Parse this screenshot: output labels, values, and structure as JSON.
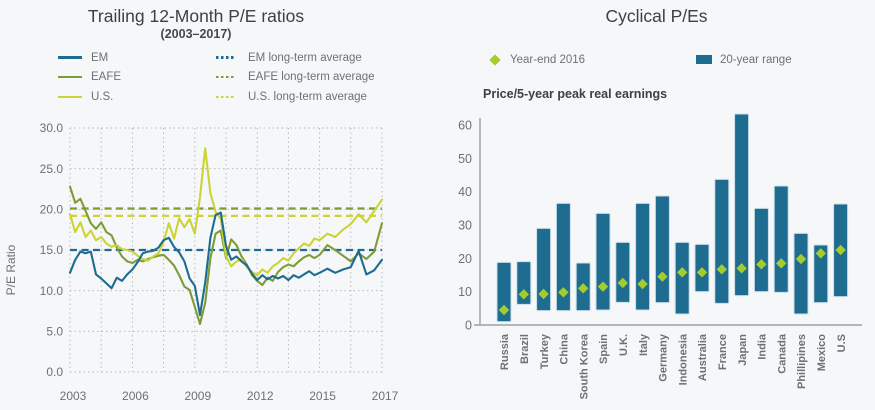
{
  "page": {
    "background": "#f6f7f9"
  },
  "chart_data": [
    {
      "id": "trailing-12-month-pe",
      "type": "line",
      "title": "Trailing 12-Month P/E ratios",
      "subtitle": "(2003–2017)",
      "ylabel": "P/E Ratio",
      "ylim": [
        0,
        30
      ],
      "yticks": [
        0,
        5,
        10,
        15,
        20,
        25,
        30
      ],
      "ytick_labels": [
        "0.0",
        "5.0",
        "10.0",
        "15.0",
        "20.0",
        "25.0",
        "30.0"
      ],
      "xtick_labels": [
        "2003",
        "2006",
        "2009",
        "2012",
        "2015",
        "2017"
      ],
      "grid": "dotted",
      "legend_position": "top",
      "x": {
        "start": 2003,
        "step": 0.25,
        "count": 57
      },
      "series": [
        {
          "name": "EM",
          "color": "#1e6c90",
          "style": "solid",
          "values": [
            12.2,
            13.8,
            14.8,
            14.6,
            14.8,
            12.0,
            11.5,
            10.9,
            10.3,
            11.6,
            11.2,
            12.0,
            12.6,
            13.5,
            14.6,
            14.8,
            14.9,
            15.3,
            16.2,
            16.5,
            15.4,
            14.7,
            13.6,
            11.5,
            10.6,
            7.0,
            11.0,
            16.5,
            19.3,
            19.6,
            15.5,
            13.8,
            14.2,
            13.6,
            13.1,
            12.1,
            11.3,
            11.9,
            11.4,
            11.8,
            11.5,
            11.8,
            11.3,
            11.9,
            11.6,
            12.0,
            12.4,
            11.9,
            12.2,
            12.7,
            12.2,
            12.6,
            12.9,
            14.9,
            12.0,
            12.5,
            13.8
          ]
        },
        {
          "name": "EAFE",
          "color": "#7d9b36",
          "style": "solid",
          "values": [
            22.8,
            20.8,
            21.3,
            19.8,
            18.3,
            17.6,
            18.4,
            17.2,
            16.8,
            15.3,
            14.2,
            13.6,
            13.4,
            13.8,
            13.6,
            13.9,
            14.1,
            14.3,
            14.4,
            13.8,
            13.1,
            11.9,
            10.5,
            10.1,
            8.0,
            5.9,
            8.5,
            14.0,
            17.0,
            17.4,
            14.0,
            16.3,
            15.6,
            14.2,
            13.2,
            11.9,
            11.2,
            10.7,
            11.6,
            11.2,
            12.3,
            12.9,
            13.2,
            13.0,
            13.6,
            14.1,
            14.4,
            14.0,
            14.4,
            15.6,
            15.0,
            14.3,
            13.6,
            14.6,
            13.9,
            14.8,
            18.3
          ]
        },
        {
          "name": "U.S.",
          "color": "#ccd335",
          "style": "solid",
          "values": [
            19.4,
            17.2,
            18.4,
            16.6,
            17.4,
            16.2,
            16.6,
            15.8,
            15.4,
            15.6,
            15.1,
            15.0,
            14.8,
            14.3,
            13.9,
            13.7,
            14.2,
            14.6,
            16.0,
            18.3,
            16.4,
            18.9,
            17.8,
            18.8,
            17.0,
            21.5,
            27.5,
            22.0,
            19.7,
            18.8,
            14.2,
            13.0,
            13.6,
            13.9,
            12.9,
            12.3,
            11.9,
            12.6,
            12.2,
            13.0,
            13.4,
            14.0,
            13.7,
            14.6,
            15.2,
            15.8,
            15.5,
            16.4,
            16.2,
            17.0,
            16.6,
            17.5,
            18.2,
            19.4,
            18.4,
            19.8,
            21.2
          ]
        }
      ],
      "long_term_averages": [
        {
          "name": "EM long-term average",
          "color": "#1e6c90",
          "style": "dashed",
          "value": 15.0
        },
        {
          "name": "EAFE long-term average",
          "color": "#7d9b36",
          "style": "dashed",
          "value": 20.1
        },
        {
          "name": "U.S. long-term average",
          "color": "#ccd335",
          "style": "dashed",
          "value": 19.2
        }
      ]
    },
    {
      "id": "cyclical-pe",
      "type": "range-bar",
      "title": "Cyclical P/Es",
      "axis_note": "Price/5-year peak real earnings",
      "ylim": [
        0,
        60
      ],
      "yticks": [
        0,
        10,
        20,
        30,
        40,
        50,
        60
      ],
      "ytick_labels": [
        "0",
        "10",
        "20",
        "30",
        "40",
        "50",
        "60"
      ],
      "legend": [
        {
          "label": "Year-end 2016",
          "marker": "diamond",
          "color": "#a4cc2f"
        },
        {
          "label": "20-year range",
          "marker": "bar",
          "color": "#1e6c90"
        }
      ],
      "bar_color": "#1e6c90",
      "marker_color": "#a4cc2f",
      "categories": [
        "Russia",
        "Brazil",
        "Turkey",
        "China",
        "South Korea",
        "Spain",
        "U.K.",
        "Italy",
        "Germany",
        "Indonesia",
        "Australia",
        "France",
        "Japan",
        "India",
        "Canada",
        "Phillipines",
        "Mexico",
        "U.S"
      ],
      "series": [
        {
          "name": "20-year range low",
          "values": [
            1.0,
            6.2,
            4.3,
            4.3,
            4.3,
            4.5,
            6.8,
            4.5,
            6.7,
            3.3,
            10.0,
            6.5,
            8.8,
            10.0,
            9.8,
            3.3,
            6.7,
            8.5
          ]
        },
        {
          "name": "20-year range high",
          "values": [
            18.8,
            19.0,
            29.0,
            36.5,
            18.6,
            33.5,
            24.8,
            36.5,
            38.7,
            24.8,
            24.2,
            43.7,
            63.3,
            35.0,
            41.7,
            27.5,
            24.0,
            36.3
          ]
        },
        {
          "name": "Year-end 2016",
          "values": [
            4.5,
            9.2,
            9.3,
            9.8,
            11.0,
            11.5,
            12.6,
            12.3,
            14.5,
            15.8,
            15.8,
            16.7,
            17.0,
            18.2,
            18.5,
            19.8,
            21.5,
            22.5
          ]
        }
      ]
    }
  ]
}
